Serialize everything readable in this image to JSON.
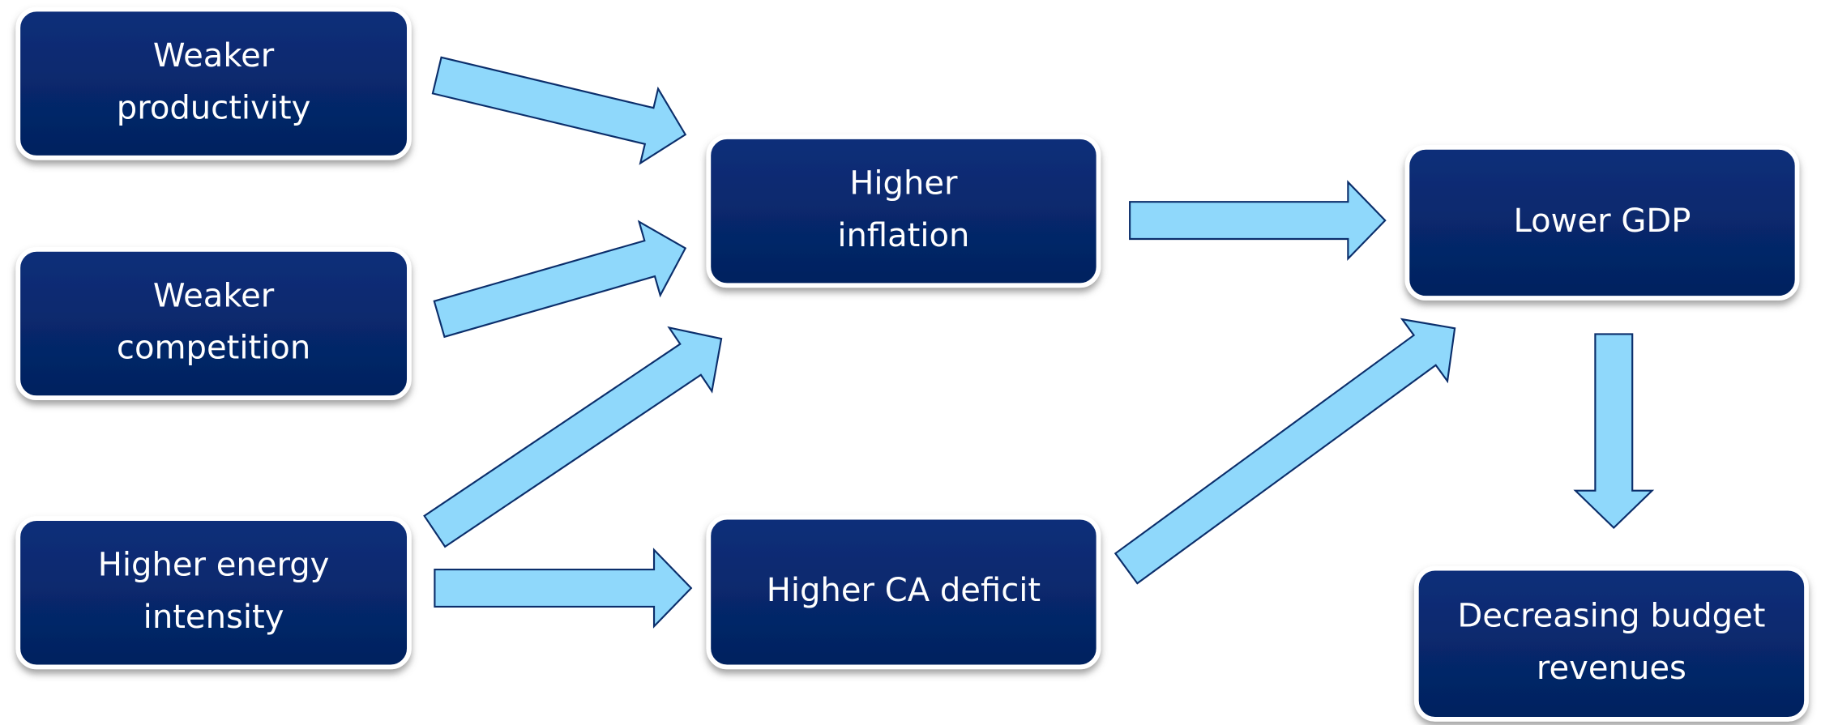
{
  "nodes": [
    {
      "lines": [
        "Weaker",
        "productivity"
      ]
    },
    {
      "lines": [
        "Weaker",
        "competition"
      ]
    },
    {
      "lines": [
        "Higher energy",
        "intensity"
      ]
    },
    {
      "lines": [
        "Higher",
        "inflation"
      ]
    },
    {
      "lines": [
        "Higher CA deficit"
      ]
    },
    {
      "lines": [
        "Lower GDP"
      ]
    },
    {
      "lines": [
        "Decreasing budget",
        "revenues"
      ]
    }
  ]
}
